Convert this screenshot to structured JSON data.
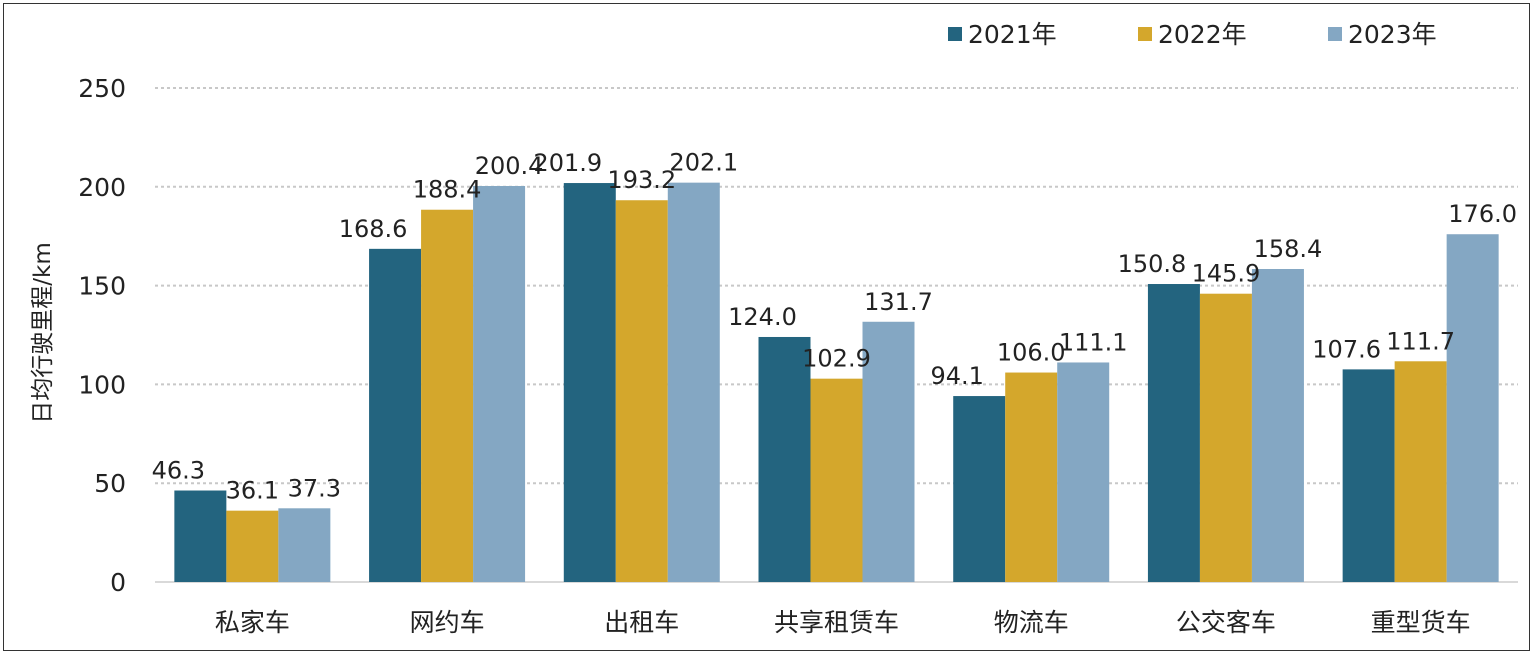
{
  "chart_data": {
    "type": "bar",
    "ylabel": "日均行驶里程/km",
    "ylim": [
      0,
      250
    ],
    "yticks": [
      0,
      50,
      100,
      150,
      200,
      250
    ],
    "grid": true,
    "legend_position": "top-right",
    "categories": [
      "私家车",
      "网约车",
      "出租车",
      "共享租赁车",
      "物流车",
      "公交客车",
      "重型货车"
    ],
    "series": [
      {
        "name": "2021年",
        "color": "#23647f",
        "values": [
          46.3,
          168.6,
          201.9,
          124.0,
          94.1,
          150.8,
          107.6
        ]
      },
      {
        "name": "2022年",
        "color": "#d4a72c",
        "values": [
          36.1,
          188.4,
          193.2,
          102.9,
          106.0,
          145.9,
          111.7
        ]
      },
      {
        "name": "2023年",
        "color": "#84a7c3",
        "values": [
          37.3,
          200.4,
          202.1,
          131.7,
          111.1,
          158.4,
          176.0
        ]
      }
    ]
  }
}
